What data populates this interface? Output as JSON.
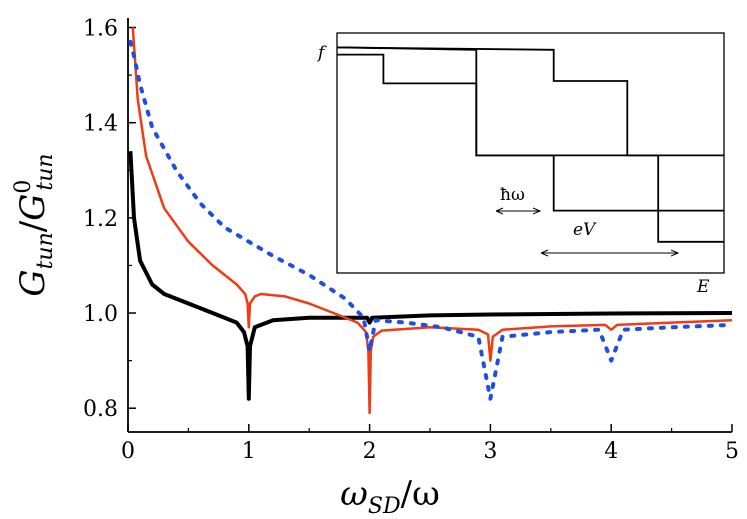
{
  "chart_data": {
    "type": "line",
    "xlabel": "ω_SD/ω",
    "ylabel": "G_tun/G^0_tun",
    "xlim": [
      0,
      5
    ],
    "ylim": [
      0.75,
      1.62
    ],
    "x_ticks": [
      "0",
      "1",
      "2",
      "3",
      "4",
      "5"
    ],
    "y_ticks": [
      "0.8",
      "1.0",
      "1.2",
      "1.4",
      "1.6"
    ],
    "y_tick_values": [
      0.8,
      1.0,
      1.2,
      1.4,
      1.6
    ],
    "grid": false,
    "legend": "none",
    "series": [
      {
        "color": "#000000",
        "style": "solid",
        "points": [
          [
            0.02,
            1.34
          ],
          [
            0.05,
            1.2
          ],
          [
            0.1,
            1.11
          ],
          [
            0.2,
            1.06
          ],
          [
            0.3,
            1.04
          ],
          [
            0.5,
            1.02
          ],
          [
            0.7,
            1.0
          ],
          [
            0.9,
            0.98
          ],
          [
            0.96,
            0.96
          ],
          [
            0.99,
            0.93
          ],
          [
            1.0,
            0.82
          ],
          [
            1.01,
            0.93
          ],
          [
            1.05,
            0.97
          ],
          [
            1.2,
            0.985
          ],
          [
            1.5,
            0.99
          ],
          [
            1.8,
            0.99
          ],
          [
            1.98,
            0.99
          ],
          [
            2.0,
            0.98
          ],
          [
            2.02,
            0.99
          ],
          [
            2.5,
            0.995
          ],
          [
            3.0,
            0.997
          ],
          [
            4.0,
            0.999
          ],
          [
            5.0,
            1.0
          ]
        ]
      },
      {
        "color": "#f03c14",
        "style": "solid",
        "points": [
          [
            0.04,
            1.6
          ],
          [
            0.08,
            1.45
          ],
          [
            0.15,
            1.33
          ],
          [
            0.3,
            1.22
          ],
          [
            0.5,
            1.15
          ],
          [
            0.7,
            1.1
          ],
          [
            0.9,
            1.06
          ],
          [
            0.97,
            1.04
          ],
          [
            0.99,
            1.02
          ],
          [
            1.0,
            0.97
          ],
          [
            1.01,
            1.02
          ],
          [
            1.05,
            1.035
          ],
          [
            1.1,
            1.04
          ],
          [
            1.3,
            1.035
          ],
          [
            1.5,
            1.02
          ],
          [
            1.7,
            1.0
          ],
          [
            1.9,
            0.98
          ],
          [
            1.97,
            0.96
          ],
          [
            1.99,
            0.92
          ],
          [
            2.0,
            0.79
          ],
          [
            2.01,
            0.92
          ],
          [
            2.03,
            0.95
          ],
          [
            2.1,
            0.963
          ],
          [
            2.5,
            0.97
          ],
          [
            2.9,
            0.965
          ],
          [
            2.98,
            0.955
          ],
          [
            3.0,
            0.9
          ],
          [
            3.02,
            0.95
          ],
          [
            3.1,
            0.965
          ],
          [
            3.5,
            0.972
          ],
          [
            3.95,
            0.975
          ],
          [
            4.0,
            0.965
          ],
          [
            4.05,
            0.975
          ],
          [
            4.5,
            0.98
          ],
          [
            5.0,
            0.985
          ]
        ]
      },
      {
        "color": "#1f4fe0",
        "style": "dotted",
        "points": [
          [
            0.02,
            1.57
          ],
          [
            0.05,
            1.54
          ],
          [
            0.1,
            1.48
          ],
          [
            0.2,
            1.39
          ],
          [
            0.4,
            1.3
          ],
          [
            0.6,
            1.23
          ],
          [
            0.8,
            1.18
          ],
          [
            1.0,
            1.15
          ],
          [
            1.2,
            1.12
          ],
          [
            1.5,
            1.08
          ],
          [
            1.8,
            1.03
          ],
          [
            1.95,
            0.99
          ],
          [
            2.0,
            0.92
          ],
          [
            2.05,
            0.985
          ],
          [
            2.3,
            0.98
          ],
          [
            2.6,
            0.97
          ],
          [
            2.9,
            0.95
          ],
          [
            3.0,
            0.82
          ],
          [
            3.1,
            0.95
          ],
          [
            3.5,
            0.96
          ],
          [
            3.9,
            0.965
          ],
          [
            4.0,
            0.9
          ],
          [
            4.1,
            0.965
          ],
          [
            4.5,
            0.97
          ],
          [
            5.0,
            0.975
          ]
        ]
      }
    ],
    "inset": {
      "labels": {
        "f": "f",
        "E": "E",
        "hbar_omega": "ħω",
        "eV": "eV"
      },
      "xlim": [
        0,
        10
      ],
      "ylim": [
        0,
        10
      ],
      "step_curves": [
        [
          [
            0,
            9.1
          ],
          [
            1.2,
            9.1
          ],
          [
            1.2,
            7.9
          ],
          [
            3.6,
            7.9
          ],
          [
            3.6,
            4.9
          ],
          [
            8.3,
            4.9
          ],
          [
            8.3,
            1.3
          ],
          [
            10,
            1.3
          ]
        ],
        [
          [
            0,
            9.4
          ],
          [
            5.6,
            9.3
          ],
          [
            5.6,
            8.0
          ],
          [
            7.5,
            8.0
          ],
          [
            7.5,
            4.9
          ],
          [
            10,
            4.9
          ]
        ],
        [
          [
            0,
            9.4
          ],
          [
            3.6,
            9.3
          ],
          [
            3.6,
            4.9
          ],
          [
            5.6,
            4.9
          ],
          [
            5.6,
            2.6
          ],
          [
            10,
            2.6
          ]
        ]
      ]
    }
  }
}
